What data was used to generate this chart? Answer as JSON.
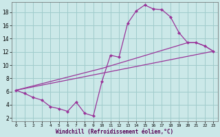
{
  "xlabel": "Windchill (Refroidissement éolien,°C)",
  "bg_color": "#cbe8e8",
  "line_color": "#993399",
  "grid_color": "#a0cccc",
  "xlim": [
    -0.5,
    23.5
  ],
  "ylim": [
    1.5,
    19.5
  ],
  "xticks": [
    0,
    1,
    2,
    3,
    4,
    5,
    6,
    7,
    8,
    9,
    10,
    11,
    12,
    13,
    14,
    15,
    16,
    17,
    18,
    19,
    20,
    21,
    22,
    23
  ],
  "yticks": [
    2,
    4,
    6,
    8,
    10,
    12,
    14,
    16,
    18
  ],
  "line1_x": [
    0,
    1,
    2,
    3,
    4,
    5,
    6,
    7,
    8,
    9,
    10,
    11,
    12,
    13,
    14,
    15,
    16,
    17,
    18,
    19,
    20,
    21,
    22,
    23
  ],
  "line1_y": [
    6.2,
    5.7,
    5.1,
    4.7,
    3.7,
    3.4,
    3.0,
    4.4,
    2.7,
    2.3,
    7.5,
    11.5,
    11.2,
    16.3,
    18.2,
    19.1,
    18.5,
    18.4,
    17.3,
    14.9,
    13.4,
    13.4,
    12.9,
    12.1
  ],
  "line2_x": [
    0,
    23
  ],
  "line2_y": [
    6.2,
    12.1
  ],
  "line3_x": [
    0,
    10,
    19,
    20,
    21,
    22,
    23
  ],
  "line3_y": [
    6.2,
    9.5,
    13.0,
    13.4,
    13.4,
    12.9,
    12.1
  ]
}
